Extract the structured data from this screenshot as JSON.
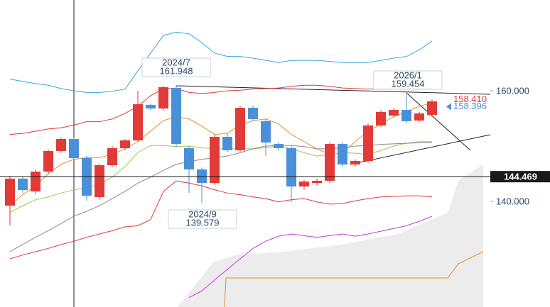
{
  "chart_data": {
    "type": "candlestick",
    "up_color": "#e23a36",
    "down_color": "#4a90d9",
    "ylim": [
      120.9,
      176.41
    ],
    "yticks": [
      {
        "value": 160,
        "label": "160.000"
      },
      {
        "value": 140,
        "label": "140.000"
      }
    ],
    "open": [
      139.23,
      144.1,
      141.79,
      145.38,
      149.1,
      151.28,
      147.82,
      140.77,
      146.54,
      149.62,
      151.03,
      157.44,
      156.79,
      160.51,
      149.62,
      145.77,
      143.33,
      151.67,
      149.23,
      156.92,
      154.49,
      150.38,
      149.62,
      142.69,
      143.33,
      143.72,
      150.38,
      146.67,
      147.31,
      153.72,
      155.51,
      156.54,
      154.62,
      155.64
    ],
    "high": [
      144.62,
      144.4,
      145.8,
      149.4,
      151.5,
      151.5,
      148.2,
      146.8,
      150.0,
      151.3,
      160.0,
      157.7,
      160.9,
      161.03,
      150.0,
      146.1,
      152.0,
      152.4,
      157.3,
      157.3,
      154.9,
      150.7,
      150.0,
      143.9,
      144.1,
      150.7,
      150.7,
      147.6,
      154.1,
      156.5,
      156.9,
      159.36,
      156.2,
      158.41
    ],
    "low": [
      135.64,
      141.5,
      141.3,
      145.0,
      148.8,
      147.5,
      140.13,
      140.3,
      146.2,
      149.3,
      150.8,
      156.5,
      156.4,
      149.8,
      141.54,
      139.74,
      143.0,
      148.9,
      148.9,
      154.5,
      148.2,
      149.2,
      139.87,
      142.1,
      142.8,
      143.3,
      146.3,
      146.3,
      147.0,
      153.4,
      155.2,
      154.2,
      154.3,
      155.3
    ],
    "close": [
      144.1,
      142.05,
      145.38,
      149.1,
      151.28,
      147.82,
      141.03,
      146.54,
      149.62,
      151.03,
      157.56,
      156.79,
      160.64,
      150.38,
      145.77,
      143.33,
      151.67,
      149.23,
      156.92,
      154.87,
      150.64,
      149.62,
      142.69,
      143.59,
      143.72,
      150.38,
      146.67,
      147.31,
      153.72,
      156.15,
      156.54,
      154.49,
      155.9,
      158.08
    ],
    "series": [
      {
        "color": "#3aa6e0",
        "values": [
          162.1,
          161.7,
          161.3,
          161.0,
          160.4,
          160.0,
          159.7,
          159.7,
          159.9,
          160.3,
          163.6,
          166.8,
          170.0,
          170.6,
          170.3,
          168.7,
          166.8,
          166.2,
          166.2,
          165.9,
          165.5,
          165.1,
          165.5,
          165.5,
          165.5,
          165.3,
          165.1,
          165.1,
          165.1,
          165.5,
          165.9,
          166.2,
          167.4,
          169.0
        ]
      },
      {
        "color": "#e23a36",
        "values": [
          152.1,
          152.3,
          152.7,
          153.1,
          153.3,
          153.8,
          154.4,
          154.4,
          154.9,
          155.9,
          157.2,
          159.1,
          160.4,
          160.4,
          159.7,
          159.5,
          159.7,
          160.0,
          160.1,
          160.3,
          160.4,
          160.5,
          160.8,
          161.0,
          161.0,
          160.8,
          160.5,
          160.4,
          160.3,
          160.4,
          160.5,
          160.5,
          160.4,
          160.4
        ]
      },
      {
        "color": "#e8902a",
        "values": [
          139.2,
          141.2,
          142.8,
          145.0,
          146.7,
          147.6,
          147.9,
          147.9,
          148.5,
          149.5,
          150.8,
          152.7,
          154.6,
          155.3,
          154.9,
          153.6,
          152.1,
          152.3,
          153.8,
          154.6,
          154.9,
          154.0,
          152.1,
          150.8,
          149.5,
          148.5,
          148.8,
          150.8,
          152.7,
          154.0,
          155.3,
          156.2,
          157.2,
          157.8
        ]
      },
      {
        "color": "#8fd14f",
        "values": [
          138.0,
          139.2,
          140.3,
          140.8,
          141.5,
          142.1,
          142.4,
          143.1,
          144.4,
          146.3,
          148.8,
          150.1,
          150.1,
          149.9,
          150.0,
          149.7,
          149.5,
          149.5,
          149.5,
          149.5,
          149.7,
          150.0,
          149.5,
          148.8,
          148.2,
          148.5,
          148.8,
          148.7,
          148.5,
          149.2,
          150.0,
          150.5,
          150.8,
          150.8
        ]
      },
      {
        "color": "#8a8a8a",
        "values": [
          130.9,
          132.2,
          133.5,
          134.7,
          136.0,
          137.3,
          138.2,
          139.2,
          140.5,
          141.8,
          143.3,
          144.4,
          145.6,
          146.7,
          147.2,
          147.6,
          147.9,
          148.2,
          148.8,
          149.5,
          150.0,
          150.1,
          150.1,
          149.9,
          149.5,
          149.5,
          149.7,
          150.0,
          150.1,
          150.3,
          150.4,
          150.5,
          150.6,
          150.6
        ]
      },
      {
        "color": "#e23a36",
        "values": [
          129.6,
          130.3,
          130.9,
          131.5,
          132.2,
          132.8,
          133.5,
          134.1,
          134.7,
          135.4,
          135.6,
          136.7,
          141.8,
          143.7,
          143.3,
          142.8,
          142.1,
          141.5,
          141.2,
          140.8,
          140.5,
          139.9,
          140.3,
          140.5,
          139.9,
          139.5,
          139.6,
          140.1,
          140.5,
          140.8,
          140.9,
          141.0,
          141.0,
          140.8
        ]
      },
      {
        "color": "#c23bd4",
        "values": [
          null,
          null,
          null,
          null,
          null,
          null,
          null,
          null,
          null,
          null,
          null,
          null,
          null,
          null,
          122.6,
          123.8,
          125.8,
          127.7,
          129.6,
          131.5,
          132.8,
          133.7,
          134.1,
          133.8,
          133.5,
          133.8,
          134.1,
          133.7,
          134.1,
          134.6,
          135.1,
          135.6,
          136.4,
          137.3
        ]
      }
    ],
    "annotations": [
      {
        "label": "2024/7",
        "value": 161.948
      },
      {
        "label": "2024/9",
        "value": 139.579
      },
      {
        "label": "2026/1",
        "value": 159.454
      }
    ],
    "price_labels": [
      {
        "value": 158.41,
        "label": "158.410",
        "color": "#e23a36"
      },
      {
        "value": 158.396,
        "color": "#4a90d9"
      }
    ],
    "last_price": 144.469
  }
}
